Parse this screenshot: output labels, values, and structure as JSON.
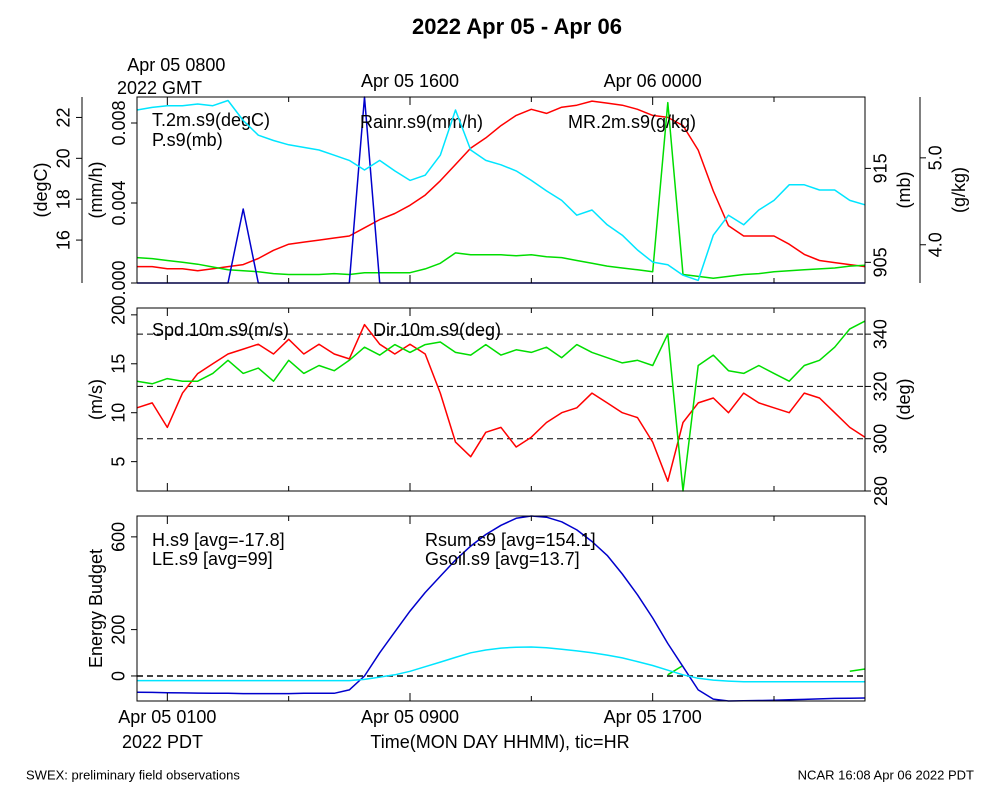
{
  "title": "2022 Apr 05 - Apr 06",
  "footer_left": "SWEX: preliminary field observations",
  "footer_right": "NCAR 16:08 Apr 06 2022 PDT",
  "x_label": "Time(MON DAY HHMM), tic=HR",
  "xlim": [
    0,
    24
  ],
  "xticks": [
    {
      "value": 1,
      "label": "Apr 05 0100"
    },
    {
      "value": 9,
      "label": "Apr 05 0900"
    },
    {
      "value": 17,
      "label": "Apr 05 1700"
    }
  ],
  "minor_xticks": [
    5,
    13,
    21
  ],
  "bottom_year_label": "2022 PDT",
  "top_xticks": [
    {
      "value": 1,
      "label": "Apr 05 0800"
    },
    {
      "value": 9,
      "label": "Apr 05 1600"
    },
    {
      "value": 17,
      "label": "Apr 06 0000"
    }
  ],
  "top_year_label": "2022 GMT",
  "chart_data": [
    {
      "type": "line",
      "x": [
        0,
        0.5,
        1,
        1.5,
        2,
        2.5,
        3,
        3.5,
        4,
        4.5,
        5,
        5.5,
        6,
        6.5,
        7,
        7.5,
        8,
        8.5,
        9,
        9.5,
        10,
        10.5,
        11,
        11.5,
        12,
        12.5,
        13,
        13.5,
        14,
        14.5,
        15,
        15.5,
        16,
        16.5,
        17,
        17.5,
        18,
        18.5,
        19,
        19.5,
        20,
        20.5,
        21,
        21.5,
        22,
        22.5,
        23,
        23.5,
        24
      ],
      "axes": [
        {
          "label": "(mm/h)",
          "side": "left",
          "lim": [
            0,
            0.0093
          ],
          "ticks": [
            {
              "value": 0,
              "label": "0.000"
            },
            {
              "value": 0.004,
              "label": "0.004"
            },
            {
              "value": 0.008,
              "label": "0.008"
            }
          ]
        },
        {
          "label": "(degC)",
          "side": "left",
          "lim": [
            13.9,
            23.0
          ],
          "ticks": [
            16,
            18,
            20,
            22
          ]
        },
        {
          "label": "(mb)",
          "side": "right",
          "lim": [
            902.8,
            922.6
          ],
          "ticks": [
            905,
            915
          ]
        },
        {
          "label": "(g/kg)",
          "side": "right",
          "lim": [
            3.56,
            5.7
          ],
          "ticks": [
            {
              "value": 4,
              "label": "4.0"
            },
            {
              "value": 5,
              "label": "5.0"
            }
          ]
        }
      ],
      "series": [
        {
          "name": "T.2m.s9(degC)",
          "color": "#ff0000",
          "axis": 1,
          "values": [
            14.7,
            14.7,
            14.6,
            14.6,
            14.5,
            14.6,
            14.7,
            14.8,
            15.1,
            15.5,
            15.8,
            15.9,
            16.0,
            16.1,
            16.2,
            16.6,
            17.0,
            17.3,
            17.7,
            18.2,
            18.9,
            19.7,
            20.5,
            21.0,
            21.6,
            22.1,
            22.4,
            22.2,
            22.5,
            22.6,
            22.8,
            22.7,
            22.6,
            22.4,
            22.1,
            22.0,
            21.6,
            20.4,
            18.4,
            16.7,
            16.2,
            16.2,
            16.2,
            15.8,
            15.3,
            15.0,
            14.9,
            14.8,
            14.7
          ]
        },
        {
          "name": "P.s9(mb)",
          "color": "#00dd00",
          "axis": 2,
          "values": [
            905.5,
            905.4,
            905.2,
            905.0,
            904.8,
            904.5,
            904.2,
            904.1,
            904.0,
            903.8,
            903.7,
            903.7,
            903.7,
            903.8,
            903.7,
            903.9,
            903.9,
            903.9,
            903.9,
            904.3,
            904.9,
            906.0,
            905.8,
            905.8,
            905.8,
            905.7,
            905.8,
            905.6,
            905.5,
            905.2,
            904.9,
            904.6,
            904.4,
            904.2,
            904.0,
            922.0,
            903.7,
            903.5,
            903.3,
            903.5,
            903.7,
            903.8,
            904.0,
            904.1,
            904.2,
            904.3,
            904.4,
            904.6,
            904.7
          ]
        },
        {
          "name": "Rainr.s9(mm/h)",
          "color": "#0000cc",
          "axis": 0,
          "values": [
            0,
            0,
            0,
            0,
            0,
            0,
            0,
            0.0037,
            0,
            0,
            0,
            0,
            0,
            0,
            0,
            0.0093,
            0,
            0,
            0,
            0,
            0,
            0,
            0,
            0,
            0,
            0,
            0,
            0,
            0,
            0,
            0,
            0,
            0,
            0,
            0,
            0,
            0,
            0,
            0,
            0,
            0,
            0,
            0,
            0,
            0,
            0,
            0,
            0,
            0
          ]
        },
        {
          "name": "MR.2m.s9(g/kg)",
          "color": "#00e5ff",
          "axis": 3,
          "values": [
            5.55,
            5.58,
            5.6,
            5.6,
            5.62,
            5.6,
            5.66,
            5.43,
            5.26,
            5.2,
            5.15,
            5.12,
            5.09,
            5.03,
            4.97,
            4.86,
            4.97,
            4.85,
            4.74,
            4.8,
            5.03,
            5.55,
            5.09,
            4.97,
            4.92,
            4.85,
            4.74,
            4.62,
            4.51,
            4.34,
            4.4,
            4.23,
            4.11,
            3.94,
            3.8,
            3.77,
            3.65,
            3.59,
            4.11,
            4.34,
            4.23,
            4.4,
            4.51,
            4.69,
            4.69,
            4.63,
            4.63,
            4.51,
            4.46
          ]
        }
      ]
    },
    {
      "type": "line",
      "x": [
        0,
        0.5,
        1,
        1.5,
        2,
        2.5,
        3,
        3.5,
        4,
        4.5,
        5,
        5.5,
        6,
        6.5,
        7,
        7.5,
        8,
        8.5,
        9,
        9.5,
        10,
        10.5,
        11,
        11.5,
        12,
        12.5,
        13,
        13.5,
        14,
        14.5,
        15,
        15.5,
        16,
        16.5,
        17,
        17.5,
        18,
        18.5,
        19,
        19.5,
        20,
        20.5,
        21,
        21.5,
        22,
        22.5,
        23,
        23.5,
        24
      ],
      "axes": [
        {
          "label": "(m/s)",
          "side": "left",
          "lim": [
            2.0,
            20.7
          ],
          "ticks": [
            5,
            10,
            15,
            20
          ]
        },
        {
          "label": "(deg)",
          "side": "right",
          "lim": [
            280,
            350
          ],
          "ticks": [
            280,
            300,
            320,
            340
          ],
          "grid": true
        }
      ],
      "series": [
        {
          "name": "Spd.10m.s9(m/s)",
          "color": "#ff0000",
          "axis": 0,
          "values": [
            10.5,
            11,
            8.5,
            12,
            14,
            15,
            16,
            16.5,
            17,
            16,
            17.5,
            16,
            17,
            16,
            15.5,
            19,
            17,
            16,
            17,
            16,
            12,
            7,
            5.5,
            8,
            8.5,
            6.5,
            7.5,
            9,
            10,
            10.5,
            12,
            11,
            10,
            9.5,
            7,
            3,
            9,
            11,
            11.5,
            10,
            12,
            11,
            10.5,
            10,
            12,
            11.5,
            10,
            8.5,
            7.5
          ]
        },
        {
          "name": "Dir.10m.s9(deg)",
          "color": "#00dd00",
          "axis": 1,
          "values": [
            322,
            321,
            323,
            322,
            322,
            325,
            330,
            325,
            327,
            322,
            330,
            325,
            328,
            326,
            330,
            335,
            332,
            336,
            333,
            336,
            337,
            333,
            332,
            336,
            332,
            334,
            333,
            335,
            331,
            336,
            333,
            331,
            329,
            330,
            328,
            340,
            280,
            328,
            332,
            326,
            325,
            328,
            325,
            322,
            328,
            330,
            335,
            342,
            345
          ]
        }
      ]
    },
    {
      "type": "line",
      "x": [
        0,
        0.5,
        1,
        1.5,
        2,
        2.5,
        3,
        3.5,
        4,
        4.5,
        5,
        5.5,
        6,
        6.5,
        7,
        7.5,
        8,
        8.5,
        9,
        9.5,
        10,
        10.5,
        11,
        11.5,
        12,
        12.5,
        13,
        13.5,
        14,
        14.5,
        15,
        15.5,
        16,
        16.5,
        17,
        17.5,
        18,
        18.5,
        19,
        19.5,
        20,
        20.5,
        21,
        21.5,
        22,
        22.5,
        23,
        23.5,
        24
      ],
      "axes": [
        {
          "label": "Energy Budget",
          "side": "left",
          "lim": [
            -108,
            690
          ],
          "ticks": [
            0,
            200,
            600
          ]
        }
      ],
      "reference_lines": [
        0
      ],
      "series": [
        {
          "name": "H.s9 [avg=-17.8]",
          "color": "#ff0000",
          "axis": 0,
          "values": [
            null,
            null,
            null,
            null,
            null,
            null,
            null,
            null,
            null,
            null,
            null,
            null,
            null,
            null,
            null,
            null,
            null,
            null,
            null,
            null,
            null,
            null,
            null,
            null,
            null,
            null,
            null,
            null,
            null,
            null,
            null,
            null,
            null,
            null,
            null,
            null,
            null,
            null,
            null,
            null,
            null,
            null,
            null,
            null,
            null,
            null,
            null,
            null,
            null
          ]
        },
        {
          "name": "LE.s9 [avg=99]",
          "color": "#00dd00",
          "axis": 0,
          "values": [
            null,
            null,
            null,
            null,
            null,
            null,
            null,
            null,
            null,
            null,
            null,
            null,
            null,
            null,
            null,
            null,
            null,
            null,
            null,
            null,
            null,
            null,
            null,
            null,
            null,
            null,
            null,
            null,
            null,
            null,
            null,
            null,
            null,
            null,
            null,
            5,
            45,
            null,
            null,
            null,
            null,
            null,
            null,
            null,
            null,
            null,
            null,
            20,
            30
          ]
        },
        {
          "name": "Rsum.s9 [avg=154.1]",
          "color": "#0000cc",
          "axis": 0,
          "values": [
            -70,
            -71,
            -72,
            -73,
            -74,
            -75,
            -75,
            -76,
            -76,
            -76,
            -76,
            -75,
            -75,
            -75,
            -60,
            0,
            100,
            190,
            280,
            360,
            430,
            500,
            560,
            610,
            650,
            680,
            690,
            685,
            665,
            630,
            580,
            520,
            440,
            350,
            250,
            140,
            40,
            -60,
            -100,
            -108,
            -107,
            -106,
            -105,
            -103,
            -101,
            -99,
            -97,
            -96,
            -95
          ]
        },
        {
          "name": "Gsoil.s9 [avg=13.7]",
          "color": "#00e5ff",
          "axis": 0,
          "values": [
            -20,
            -20,
            -20,
            -20,
            -20,
            -20,
            -20,
            -20,
            -20,
            -20,
            -20,
            -20,
            -20,
            -20,
            -20,
            -15,
            -5,
            5,
            20,
            40,
            60,
            80,
            100,
            112,
            120,
            124,
            125,
            122,
            115,
            108,
            100,
            90,
            78,
            62,
            45,
            25,
            5,
            -10,
            -18,
            -22,
            -25,
            -25,
            -25,
            -25,
            -25,
            -25,
            -25,
            -25,
            -25
          ]
        }
      ]
    }
  ]
}
